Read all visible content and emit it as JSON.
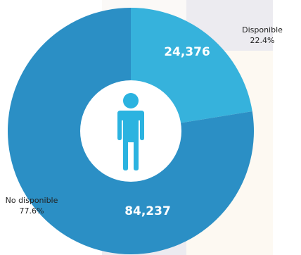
{
  "chart_data": {
    "type": "donut",
    "title": "",
    "slices": [
      {
        "label": "Disponible",
        "value": 24376,
        "value_text": "24,376",
        "percent": 22.4,
        "percent_text": "22.4%",
        "color": "#36b2dc"
      },
      {
        "label": "No disponible",
        "value": 84237,
        "value_text": "84,237",
        "percent": 77.6,
        "percent_text": "77.6%",
        "color": "#2b8fc5"
      }
    ],
    "center_icon": "person-icon",
    "center_icon_color": "#2bb3e0",
    "ring_color_light": "#36b2dc",
    "ring_color_dark": "#2b8fc5"
  }
}
